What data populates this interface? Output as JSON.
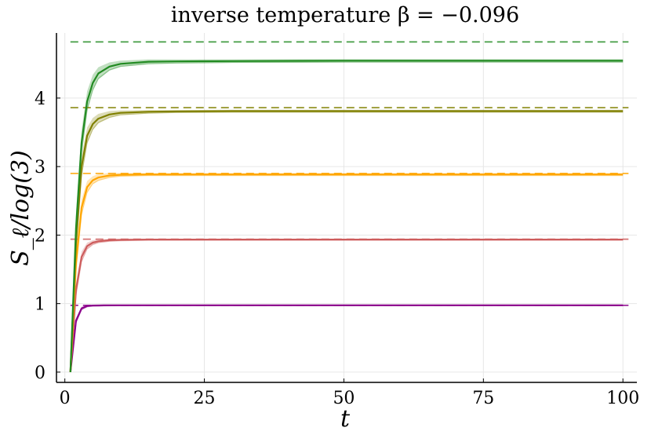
{
  "chart_data": {
    "type": "line",
    "title": "inverse temperature β = −0.096",
    "xlabel": "t",
    "ylabel": "S_ℓ/log(3)",
    "xlim": [
      -1.5,
      102.5
    ],
    "ylim": [
      -0.15,
      4.95
    ],
    "xticks": [
      0,
      25,
      50,
      75,
      100
    ],
    "yticks": [
      0,
      1,
      2,
      3,
      4
    ],
    "grid": true,
    "legend": "none",
    "series": [
      {
        "color": "#8b008b",
        "x": [
          1,
          2,
          3,
          4,
          5,
          7,
          10,
          15,
          20,
          30,
          50,
          75,
          100
        ],
        "y": [
          0,
          0.75,
          0.93,
          0.965,
          0.972,
          0.974,
          0.975,
          0.975,
          0.975,
          0.975,
          0.975,
          0.975,
          0.975
        ],
        "band": [
          0,
          0.04,
          0.025,
          0.015,
          0.01,
          0.008,
          0.006,
          0.006,
          0.006,
          0.006,
          0.006,
          0.006,
          0.006
        ],
        "reference": 0.975
      },
      {
        "color": "#cd5c5c",
        "x": [
          1,
          2,
          3,
          4,
          5,
          6,
          8,
          10,
          15,
          20,
          30,
          50,
          75,
          100
        ],
        "y": [
          0,
          1.2,
          1.68,
          1.84,
          1.89,
          1.91,
          1.925,
          1.93,
          1.935,
          1.935,
          1.935,
          1.935,
          1.935,
          1.935
        ],
        "band": [
          0,
          0.1,
          0.08,
          0.05,
          0.035,
          0.025,
          0.02,
          0.015,
          0.012,
          0.012,
          0.012,
          0.012,
          0.012,
          0.012
        ],
        "reference": 1.94
      },
      {
        "color": "#ffa500",
        "x": [
          1,
          2,
          3,
          4,
          5,
          6,
          8,
          10,
          15,
          20,
          30,
          50,
          75,
          100
        ],
        "y": [
          0,
          1.6,
          2.4,
          2.7,
          2.8,
          2.84,
          2.87,
          2.88,
          2.885,
          2.885,
          2.885,
          2.885,
          2.885,
          2.885
        ],
        "band": [
          0,
          0.15,
          0.12,
          0.09,
          0.06,
          0.05,
          0.035,
          0.025,
          0.02,
          0.02,
          0.02,
          0.02,
          0.02,
          0.02
        ],
        "reference": 2.9
      },
      {
        "color": "#808000",
        "x": [
          1,
          2,
          3,
          4,
          5,
          6,
          8,
          10,
          15,
          20,
          30,
          50,
          75,
          100
        ],
        "y": [
          0,
          1.9,
          3.0,
          3.45,
          3.62,
          3.7,
          3.76,
          3.785,
          3.8,
          3.805,
          3.81,
          3.81,
          3.81,
          3.81
        ],
        "band": [
          0,
          0.2,
          0.16,
          0.12,
          0.09,
          0.07,
          0.05,
          0.035,
          0.025,
          0.02,
          0.02,
          0.02,
          0.02,
          0.02
        ],
        "reference": 3.86
      },
      {
        "color": "#228b22",
        "x": [
          1,
          2,
          3,
          4,
          5,
          6,
          8,
          10,
          15,
          20,
          30,
          50,
          75,
          100
        ],
        "y": [
          0,
          2.1,
          3.35,
          3.95,
          4.22,
          4.36,
          4.46,
          4.5,
          4.53,
          4.535,
          4.54,
          4.545,
          4.545,
          4.545
        ],
        "band": [
          0,
          0.22,
          0.18,
          0.15,
          0.12,
          0.09,
          0.06,
          0.045,
          0.035,
          0.03,
          0.025,
          0.025,
          0.025,
          0.025
        ],
        "reference": 4.82
      }
    ]
  }
}
